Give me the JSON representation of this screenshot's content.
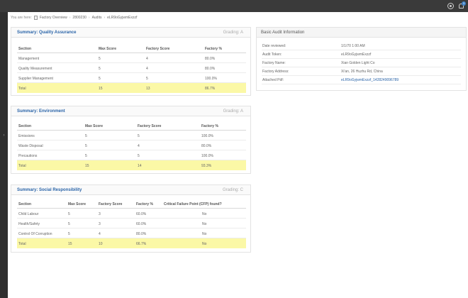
{
  "breadcrumb": {
    "prefix": "You are here:",
    "items": [
      "Factory Overview",
      "2800230",
      "Audits",
      "eLR9oGyjwmExzzf"
    ]
  },
  "notifications": {
    "count": "3"
  },
  "panels": {
    "quality": {
      "title": "Summary: Quality Assurance",
      "grading": "Grading: A",
      "headers": [
        "Section",
        "Max Score",
        "Factory Score",
        "Factory %"
      ],
      "rows": [
        [
          "Management",
          "5",
          "4",
          "80.0%"
        ],
        [
          "Quality Measurement",
          "5",
          "4",
          "80.0%"
        ],
        [
          "Supplier Management",
          "5",
          "5",
          "100.0%"
        ]
      ],
      "total": [
        "Total",
        "15",
        "13",
        "86.7%"
      ]
    },
    "environment": {
      "title": "Summary: Environment",
      "grading": "Grading: A",
      "headers": [
        "Section",
        "Max Score",
        "Factory Score",
        "Factory %"
      ],
      "rows": [
        [
          "Emissions",
          "5",
          "5",
          "100.0%"
        ],
        [
          "Waste Disposal",
          "5",
          "4",
          "80.0%"
        ],
        [
          "Precautions",
          "5",
          "5",
          "100.0%"
        ]
      ],
      "total": [
        "Total",
        "15",
        "14",
        "93.3%"
      ]
    },
    "social": {
      "title": "Summary: Social Responsibility",
      "grading": "Grading: C",
      "headers": [
        "Section",
        "Max Score",
        "Factory Score",
        "Factory %",
        "Critical Failure Point (CFP) found?"
      ],
      "rows": [
        [
          "Child Labour",
          "5",
          "3",
          "60.0%",
          "No"
        ],
        [
          "Health/Safety",
          "5",
          "3",
          "60.0%",
          "No"
        ],
        [
          "Control Of Corruption",
          "5",
          "4",
          "80.0%",
          "No"
        ]
      ],
      "total": [
        "Total",
        "15",
        "10",
        "66.7%",
        "No"
      ]
    }
  },
  "audit_info": {
    "title": "Basic Audit Information",
    "rows": [
      {
        "label": "Date reviewed:",
        "value": "1/1/70 1:00 AM"
      },
      {
        "label": "Audit Token:",
        "value": "eLR9oGyjwmExzzf"
      },
      {
        "label": "Factory Name:",
        "value": "Xian Golden Light Co"
      },
      {
        "label": "Factory Address:",
        "value": "Xi'an, 26 Huzhu Rd, China"
      },
      {
        "label": "Attached Pdf:",
        "value": "eLR9oGyjwmExzzf_1428249096789"
      }
    ]
  }
}
